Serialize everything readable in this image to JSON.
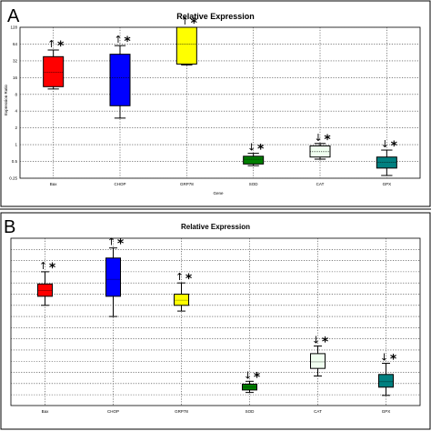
{
  "chart_data": [
    {
      "panel_label": "A",
      "type": "box",
      "title": "Relative Expression",
      "xlabel": "Gene",
      "ylabel": "Expression Ratio",
      "y_scale": "log2",
      "ylim": [
        0.25,
        128
      ],
      "y_ticks": [
        "128",
        "64",
        "32",
        "16",
        "8",
        "4",
        "2",
        "1",
        "0.5",
        "0.25"
      ],
      "y_tick_values": [
        128,
        64,
        32,
        16,
        8,
        4,
        2,
        1,
        0.5,
        0.25
      ],
      "grid": "dotted",
      "categories": [
        "Bax",
        "CHOP",
        "GRP78",
        "SOD",
        "CAT",
        "GPX"
      ],
      "boxes": [
        {
          "label": "Bax",
          "color": "#ff0000",
          "whisker_low": 10,
          "q1": 11,
          "median": 20,
          "q3": 38,
          "whisker_high": 50,
          "arrow": "↑",
          "sig": "*"
        },
        {
          "label": "CHOP",
          "color": "#0000ff",
          "whisker_low": 3,
          "q1": 5,
          "median": 16,
          "q3": 42,
          "whisker_high": 60,
          "arrow": "↑",
          "sig": "*"
        },
        {
          "label": "GRP78",
          "color": "#ffff00",
          "whisker_low": 27,
          "q1": 28,
          "median": 64,
          "q3": 128,
          "whisker_high": 128,
          "arrow": "↑",
          "sig": "*"
        },
        {
          "label": "SOD",
          "color": "#008000",
          "whisker_low": 0.42,
          "q1": 0.45,
          "median": 0.55,
          "q3": 0.62,
          "whisker_high": 0.7,
          "arrow": "↓",
          "sig": "*"
        },
        {
          "label": "CAT",
          "color": "#f0fff0",
          "whisker_low": 0.55,
          "q1": 0.6,
          "median": 0.75,
          "q3": 0.95,
          "whisker_high": 1.05,
          "arrow": "↓",
          "sig": "*"
        },
        {
          "label": "GPX",
          "color": "#008080",
          "whisker_low": 0.28,
          "q1": 0.38,
          "median": 0.48,
          "q3": 0.6,
          "whisker_high": 0.8,
          "arrow": "↓",
          "sig": "*"
        }
      ]
    },
    {
      "panel_label": "B",
      "type": "box",
      "title": "Relative Expression",
      "xlabel": "",
      "ylabel": "",
      "y_scale": "log2",
      "ylim": [
        0.008,
        256
      ],
      "y_ticks": [],
      "grid": "dotted",
      "categories": [
        "Bax",
        "CHOP",
        "GRP78",
        "SOD",
        "CAT",
        "GPX"
      ],
      "boxes": [
        {
          "label": "Bax",
          "color": "#ff0000",
          "whisker_low": 4,
          "q1": 7,
          "median": 10,
          "q3": 15,
          "whisker_high": 32,
          "arrow": "↑",
          "sig": "*"
        },
        {
          "label": "CHOP",
          "color": "#0000ff",
          "whisker_low": 2,
          "q1": 7,
          "median": 20,
          "q3": 75,
          "whisker_high": 140,
          "arrow": "↑",
          "sig": "*"
        },
        {
          "label": "GRP78",
          "color": "#ffff00",
          "whisker_low": 2.8,
          "q1": 4,
          "median": 5.5,
          "q3": 8,
          "whisker_high": 16,
          "arrow": "↑",
          "sig": "*"
        },
        {
          "label": "SOD",
          "color": "#008000",
          "whisker_low": 0.018,
          "q1": 0.021,
          "median": 0.025,
          "q3": 0.03,
          "whisker_high": 0.036,
          "arrow": "↓",
          "sig": "*"
        },
        {
          "label": "CAT",
          "color": "#f0fff0",
          "whisker_low": 0.05,
          "q1": 0.08,
          "median": 0.12,
          "q3": 0.2,
          "whisker_high": 0.32,
          "arrow": "↓",
          "sig": "*"
        },
        {
          "label": "GPX",
          "color": "#008080",
          "whisker_low": 0.015,
          "q1": 0.025,
          "median": 0.035,
          "q3": 0.055,
          "whisker_high": 0.11,
          "arrow": "↓",
          "sig": "*"
        }
      ]
    }
  ]
}
